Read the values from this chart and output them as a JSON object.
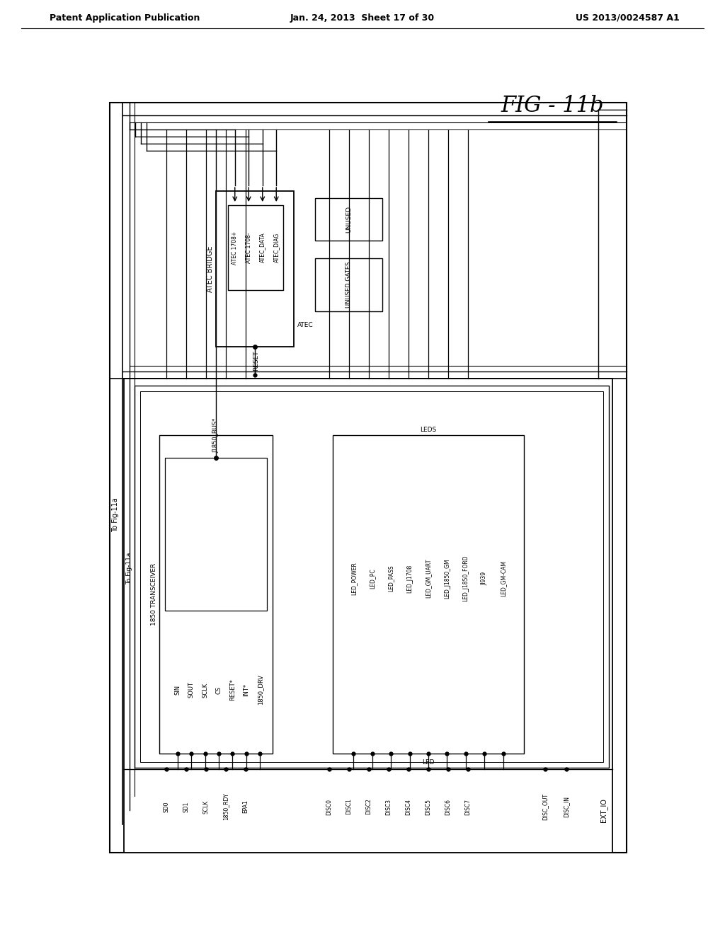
{
  "title_left": "Patent Application Publication",
  "title_center": "Jan. 24, 2013  Sheet 17 of 30",
  "title_right": "US 2013/0024587 A1",
  "fig_label": "FIG - 11b",
  "background_color": "#ffffff",
  "text_color": "#000000",
  "line_color": "#000000",
  "atec_inner_signals": [
    "ATEC 1708+",
    "ATEC 1708-",
    "ATEC_DATA",
    "ATEC_DIAG"
  ],
  "transceiver_signals": [
    "SIN",
    "SOUT",
    "SCLK",
    "CS",
    "RESET*",
    "INT*",
    "1850_DRV"
  ],
  "led_signals": [
    "LED_POWER",
    "LED_PC",
    "LED_PASS",
    "LED_J1708",
    "LED_GM_UART",
    "LED_J1850_GM",
    "LED_J1850_FORD",
    "JI939",
    "LED_GM-CAM"
  ],
  "ext_left_signals": [
    "SD0",
    "SD1",
    "SCLK",
    "1850_RDY",
    "EPA1"
  ],
  "ext_disc_signals": [
    "DISC0",
    "DISC1",
    "DISC2",
    "DISC3",
    "DISC4",
    "DISC5",
    "DISC6",
    "DISC7"
  ],
  "ext_right_signals": [
    "DISC_OUT",
    "DISC_IN"
  ]
}
